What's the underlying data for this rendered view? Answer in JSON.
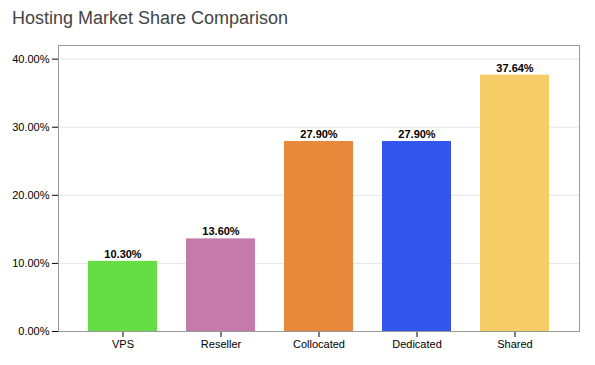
{
  "chart_data": {
    "type": "bar",
    "title": "Hosting Market Share Comparison",
    "categories": [
      "VPS",
      "Reseller",
      "Collocated",
      "Dedicated",
      "Shared"
    ],
    "values": [
      10.3,
      13.6,
      27.9,
      27.9,
      37.64
    ],
    "value_labels": [
      "10.30%",
      "13.60%",
      "27.90%",
      "27.90%",
      "37.64%"
    ],
    "data_labels": true,
    "colors": [
      "#66dd44",
      "#c47aaa",
      "#e8883a",
      "#3355ee",
      "#f5cc66"
    ],
    "ylim": [
      0,
      42
    ],
    "yticks": [
      {
        "value": 0,
        "label": "0.00%"
      },
      {
        "value": 10,
        "label": "10.00%"
      },
      {
        "value": 20,
        "label": "20.00%"
      },
      {
        "value": 30,
        "label": "30.00%"
      },
      {
        "value": 40,
        "label": "40.00%"
      }
    ],
    "grid": true
  }
}
